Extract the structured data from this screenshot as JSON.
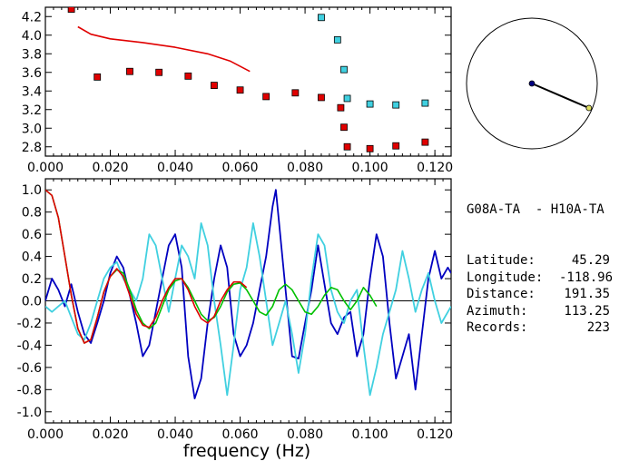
{
  "chart_data": [
    {
      "type": "scatter",
      "xlim": [
        0.0,
        0.125
      ],
      "ylim": [
        2.7,
        4.3
      ],
      "xticks": [
        "0.000",
        "0.020",
        "0.040",
        "0.060",
        "0.080",
        "0.100",
        "0.120"
      ],
      "yticks": [
        "2.8",
        "3.0",
        "3.2",
        "3.4",
        "3.6",
        "3.8",
        "4.0",
        "4.2"
      ],
      "series": [
        {
          "color": "#e00000",
          "marker": "square",
          "points": [
            [
              0.008,
              4.28
            ],
            [
              0.016,
              3.55
            ],
            [
              0.026,
              3.61
            ],
            [
              0.035,
              3.6
            ],
            [
              0.044,
              3.56
            ],
            [
              0.052,
              3.46
            ],
            [
              0.06,
              3.41
            ],
            [
              0.068,
              3.34
            ],
            [
              0.077,
              3.38
            ],
            [
              0.085,
              3.33
            ],
            [
              0.091,
              3.22
            ],
            [
              0.092,
              3.01
            ],
            [
              0.093,
              2.8
            ],
            [
              0.1,
              2.78
            ],
            [
              0.108,
              2.81
            ],
            [
              0.117,
              2.85
            ]
          ]
        },
        {
          "color": "#40d0e0",
          "marker": "square",
          "points": [
            [
              0.085,
              4.19
            ],
            [
              0.09,
              3.95
            ],
            [
              0.092,
              3.63
            ],
            [
              0.093,
              3.32
            ],
            [
              0.1,
              3.26
            ],
            [
              0.108,
              3.25
            ],
            [
              0.117,
              3.27
            ]
          ]
        },
        {
          "color": "#e00000",
          "marker": "line",
          "points": [
            [
              0.01,
              4.09
            ],
            [
              0.014,
              4.01
            ],
            [
              0.02,
              3.96
            ],
            [
              0.03,
              3.92
            ],
            [
              0.04,
              3.87
            ],
            [
              0.05,
              3.8
            ],
            [
              0.057,
              3.72
            ],
            [
              0.063,
              3.61
            ]
          ]
        }
      ]
    },
    {
      "type": "line",
      "xlabel": "frequency (Hz)",
      "xlim": [
        0.0,
        0.125
      ],
      "ylim": [
        -1.1,
        1.1
      ],
      "xticks": [
        "0.000",
        "0.020",
        "0.040",
        "0.060",
        "0.080",
        "0.100",
        "0.120"
      ],
      "yticks": [
        "1.0",
        "0.8",
        "0.6",
        "0.4",
        "0.2",
        "0.0",
        "-0.2",
        "-0.4",
        "-0.6",
        "-0.8",
        "-1.0"
      ],
      "series": [
        {
          "color": "#0000c0",
          "points": [
            [
              0.0,
              0.0
            ],
            [
              0.002,
              0.2
            ],
            [
              0.004,
              0.1
            ],
            [
              0.006,
              -0.05
            ],
            [
              0.008,
              0.15
            ],
            [
              0.01,
              -0.1
            ],
            [
              0.012,
              -0.3
            ],
            [
              0.014,
              -0.38
            ],
            [
              0.016,
              -0.2
            ],
            [
              0.018,
              0.0
            ],
            [
              0.02,
              0.25
            ],
            [
              0.022,
              0.4
            ],
            [
              0.024,
              0.3
            ],
            [
              0.026,
              0.05
            ],
            [
              0.028,
              -0.2
            ],
            [
              0.03,
              -0.5
            ],
            [
              0.032,
              -0.4
            ],
            [
              0.034,
              -0.1
            ],
            [
              0.036,
              0.2
            ],
            [
              0.038,
              0.5
            ],
            [
              0.04,
              0.6
            ],
            [
              0.042,
              0.3
            ],
            [
              0.044,
              -0.5
            ],
            [
              0.046,
              -0.88
            ],
            [
              0.048,
              -0.7
            ],
            [
              0.05,
              -0.2
            ],
            [
              0.052,
              0.2
            ],
            [
              0.054,
              0.5
            ],
            [
              0.056,
              0.3
            ],
            [
              0.058,
              -0.3
            ],
            [
              0.06,
              -0.5
            ],
            [
              0.062,
              -0.4
            ],
            [
              0.064,
              -0.2
            ],
            [
              0.066,
              0.1
            ],
            [
              0.068,
              0.4
            ],
            [
              0.07,
              0.85
            ],
            [
              0.071,
              1.0
            ],
            [
              0.072,
              0.7
            ],
            [
              0.074,
              0.1
            ],
            [
              0.076,
              -0.5
            ],
            [
              0.078,
              -0.52
            ],
            [
              0.08,
              -0.2
            ],
            [
              0.082,
              0.1
            ],
            [
              0.084,
              0.5
            ],
            [
              0.086,
              0.15
            ],
            [
              0.088,
              -0.2
            ],
            [
              0.09,
              -0.3
            ],
            [
              0.092,
              -0.15
            ],
            [
              0.094,
              -0.1
            ],
            [
              0.096,
              -0.5
            ],
            [
              0.098,
              -0.3
            ],
            [
              0.1,
              0.2
            ],
            [
              0.102,
              0.6
            ],
            [
              0.104,
              0.4
            ],
            [
              0.106,
              -0.2
            ],
            [
              0.108,
              -0.7
            ],
            [
              0.11,
              -0.5
            ],
            [
              0.112,
              -0.3
            ],
            [
              0.114,
              -0.8
            ],
            [
              0.116,
              -0.3
            ],
            [
              0.118,
              0.2
            ],
            [
              0.12,
              0.45
            ],
            [
              0.122,
              0.2
            ],
            [
              0.124,
              0.3
            ],
            [
              0.125,
              0.25
            ]
          ]
        },
        {
          "color": "#40d0e0",
          "points": [
            [
              0.0,
              -0.05
            ],
            [
              0.002,
              -0.1
            ],
            [
              0.004,
              -0.05
            ],
            [
              0.006,
              0.0
            ],
            [
              0.008,
              -0.15
            ],
            [
              0.01,
              -0.3
            ],
            [
              0.012,
              -0.35
            ],
            [
              0.014,
              -0.2
            ],
            [
              0.016,
              0.0
            ],
            [
              0.018,
              0.2
            ],
            [
              0.02,
              0.3
            ],
            [
              0.022,
              0.35
            ],
            [
              0.024,
              0.2
            ],
            [
              0.026,
              0.1
            ],
            [
              0.028,
              0.0
            ],
            [
              0.03,
              0.2
            ],
            [
              0.032,
              0.6
            ],
            [
              0.034,
              0.5
            ],
            [
              0.036,
              0.2
            ],
            [
              0.038,
              -0.1
            ],
            [
              0.04,
              0.2
            ],
            [
              0.042,
              0.5
            ],
            [
              0.044,
              0.4
            ],
            [
              0.046,
              0.2
            ],
            [
              0.048,
              0.7
            ],
            [
              0.05,
              0.5
            ],
            [
              0.052,
              0.0
            ],
            [
              0.054,
              -0.4
            ],
            [
              0.056,
              -0.85
            ],
            [
              0.058,
              -0.4
            ],
            [
              0.06,
              0.1
            ],
            [
              0.062,
              0.3
            ],
            [
              0.064,
              0.7
            ],
            [
              0.066,
              0.4
            ],
            [
              0.068,
              0.0
            ],
            [
              0.07,
              -0.4
            ],
            [
              0.072,
              -0.2
            ],
            [
              0.074,
              0.0
            ],
            [
              0.076,
              -0.3
            ],
            [
              0.078,
              -0.65
            ],
            [
              0.08,
              -0.3
            ],
            [
              0.082,
              0.2
            ],
            [
              0.084,
              0.6
            ],
            [
              0.086,
              0.5
            ],
            [
              0.088,
              0.1
            ],
            [
              0.09,
              -0.1
            ],
            [
              0.092,
              -0.2
            ],
            [
              0.094,
              0.0
            ],
            [
              0.096,
              0.1
            ],
            [
              0.098,
              -0.4
            ],
            [
              0.1,
              -0.85
            ],
            [
              0.102,
              -0.6
            ],
            [
              0.104,
              -0.3
            ],
            [
              0.106,
              -0.1
            ],
            [
              0.108,
              0.1
            ],
            [
              0.11,
              0.45
            ],
            [
              0.112,
              0.2
            ],
            [
              0.114,
              -0.1
            ],
            [
              0.116,
              0.1
            ],
            [
              0.118,
              0.25
            ],
            [
              0.12,
              0.0
            ],
            [
              0.122,
              -0.2
            ],
            [
              0.125,
              -0.05
            ]
          ]
        },
        {
          "color": "#00c000",
          "points": [
            [
              0.0,
              1.0
            ],
            [
              0.002,
              0.95
            ],
            [
              0.004,
              0.75
            ],
            [
              0.006,
              0.4
            ],
            [
              0.008,
              0.05
            ],
            [
              0.01,
              -0.25
            ],
            [
              0.012,
              -0.38
            ],
            [
              0.014,
              -0.35
            ],
            [
              0.016,
              -0.15
            ],
            [
              0.018,
              0.08
            ],
            [
              0.02,
              0.22
            ],
            [
              0.022,
              0.28
            ],
            [
              0.024,
              0.25
            ],
            [
              0.026,
              0.1
            ],
            [
              0.028,
              -0.08
            ],
            [
              0.03,
              -0.2
            ],
            [
              0.032,
              -0.25
            ],
            [
              0.034,
              -0.2
            ],
            [
              0.036,
              -0.05
            ],
            [
              0.038,
              0.1
            ],
            [
              0.04,
              0.18
            ],
            [
              0.042,
              0.2
            ],
            [
              0.044,
              0.12
            ],
            [
              0.046,
              0.0
            ],
            [
              0.048,
              -0.12
            ],
            [
              0.05,
              -0.18
            ],
            [
              0.052,
              -0.15
            ],
            [
              0.054,
              -0.05
            ],
            [
              0.056,
              0.08
            ],
            [
              0.058,
              0.15
            ],
            [
              0.06,
              0.16
            ],
            [
              0.062,
              0.1
            ],
            [
              0.064,
              0.0
            ],
            [
              0.066,
              -0.1
            ],
            [
              0.068,
              -0.13
            ],
            [
              0.07,
              -0.05
            ],
            [
              0.072,
              0.1
            ],
            [
              0.074,
              0.15
            ],
            [
              0.076,
              0.1
            ],
            [
              0.078,
              0.0
            ],
            [
              0.08,
              -0.1
            ],
            [
              0.082,
              -0.12
            ],
            [
              0.084,
              -0.05
            ],
            [
              0.086,
              0.05
            ],
            [
              0.088,
              0.12
            ],
            [
              0.09,
              0.1
            ],
            [
              0.092,
              0.0
            ],
            [
              0.094,
              -0.08
            ],
            [
              0.096,
              0.0
            ],
            [
              0.098,
              0.12
            ],
            [
              0.1,
              0.05
            ],
            [
              0.102,
              -0.05
            ]
          ]
        },
        {
          "color": "#e00000",
          "points": [
            [
              0.0,
              1.0
            ],
            [
              0.002,
              0.95
            ],
            [
              0.004,
              0.75
            ],
            [
              0.006,
              0.4
            ],
            [
              0.008,
              0.05
            ],
            [
              0.01,
              -0.25
            ],
            [
              0.012,
              -0.38
            ],
            [
              0.014,
              -0.35
            ],
            [
              0.016,
              -0.15
            ],
            [
              0.018,
              0.08
            ],
            [
              0.02,
              0.22
            ],
            [
              0.022,
              0.29
            ],
            [
              0.024,
              0.22
            ],
            [
              0.026,
              0.05
            ],
            [
              0.028,
              -0.12
            ],
            [
              0.03,
              -0.22
            ],
            [
              0.032,
              -0.24
            ],
            [
              0.034,
              -0.15
            ],
            [
              0.036,
              0.0
            ],
            [
              0.038,
              0.12
            ],
            [
              0.04,
              0.2
            ],
            [
              0.042,
              0.2
            ],
            [
              0.044,
              0.1
            ],
            [
              0.046,
              -0.05
            ],
            [
              0.048,
              -0.16
            ],
            [
              0.05,
              -0.2
            ],
            [
              0.052,
              -0.14
            ],
            [
              0.054,
              0.0
            ],
            [
              0.056,
              0.1
            ],
            [
              0.058,
              0.17
            ],
            [
              0.06,
              0.17
            ],
            [
              0.062,
              0.12
            ]
          ]
        }
      ]
    }
  ],
  "polar_plot": {
    "center_color": "#000080",
    "end_color": "#e0e060",
    "azimuth": 113.25,
    "radius_fraction": 0.95
  },
  "station_info": {
    "pair": "G08A-TA  - H10A-TA",
    "rows": [
      {
        "label": "Latitude:",
        "value": "45.29"
      },
      {
        "label": "Longitude:",
        "value": "-118.96"
      },
      {
        "label": "Distance:",
        "value": "191.35"
      },
      {
        "label": "Azimuth:",
        "value": "113.25"
      },
      {
        "label": "Records:",
        "value": "223"
      }
    ]
  }
}
